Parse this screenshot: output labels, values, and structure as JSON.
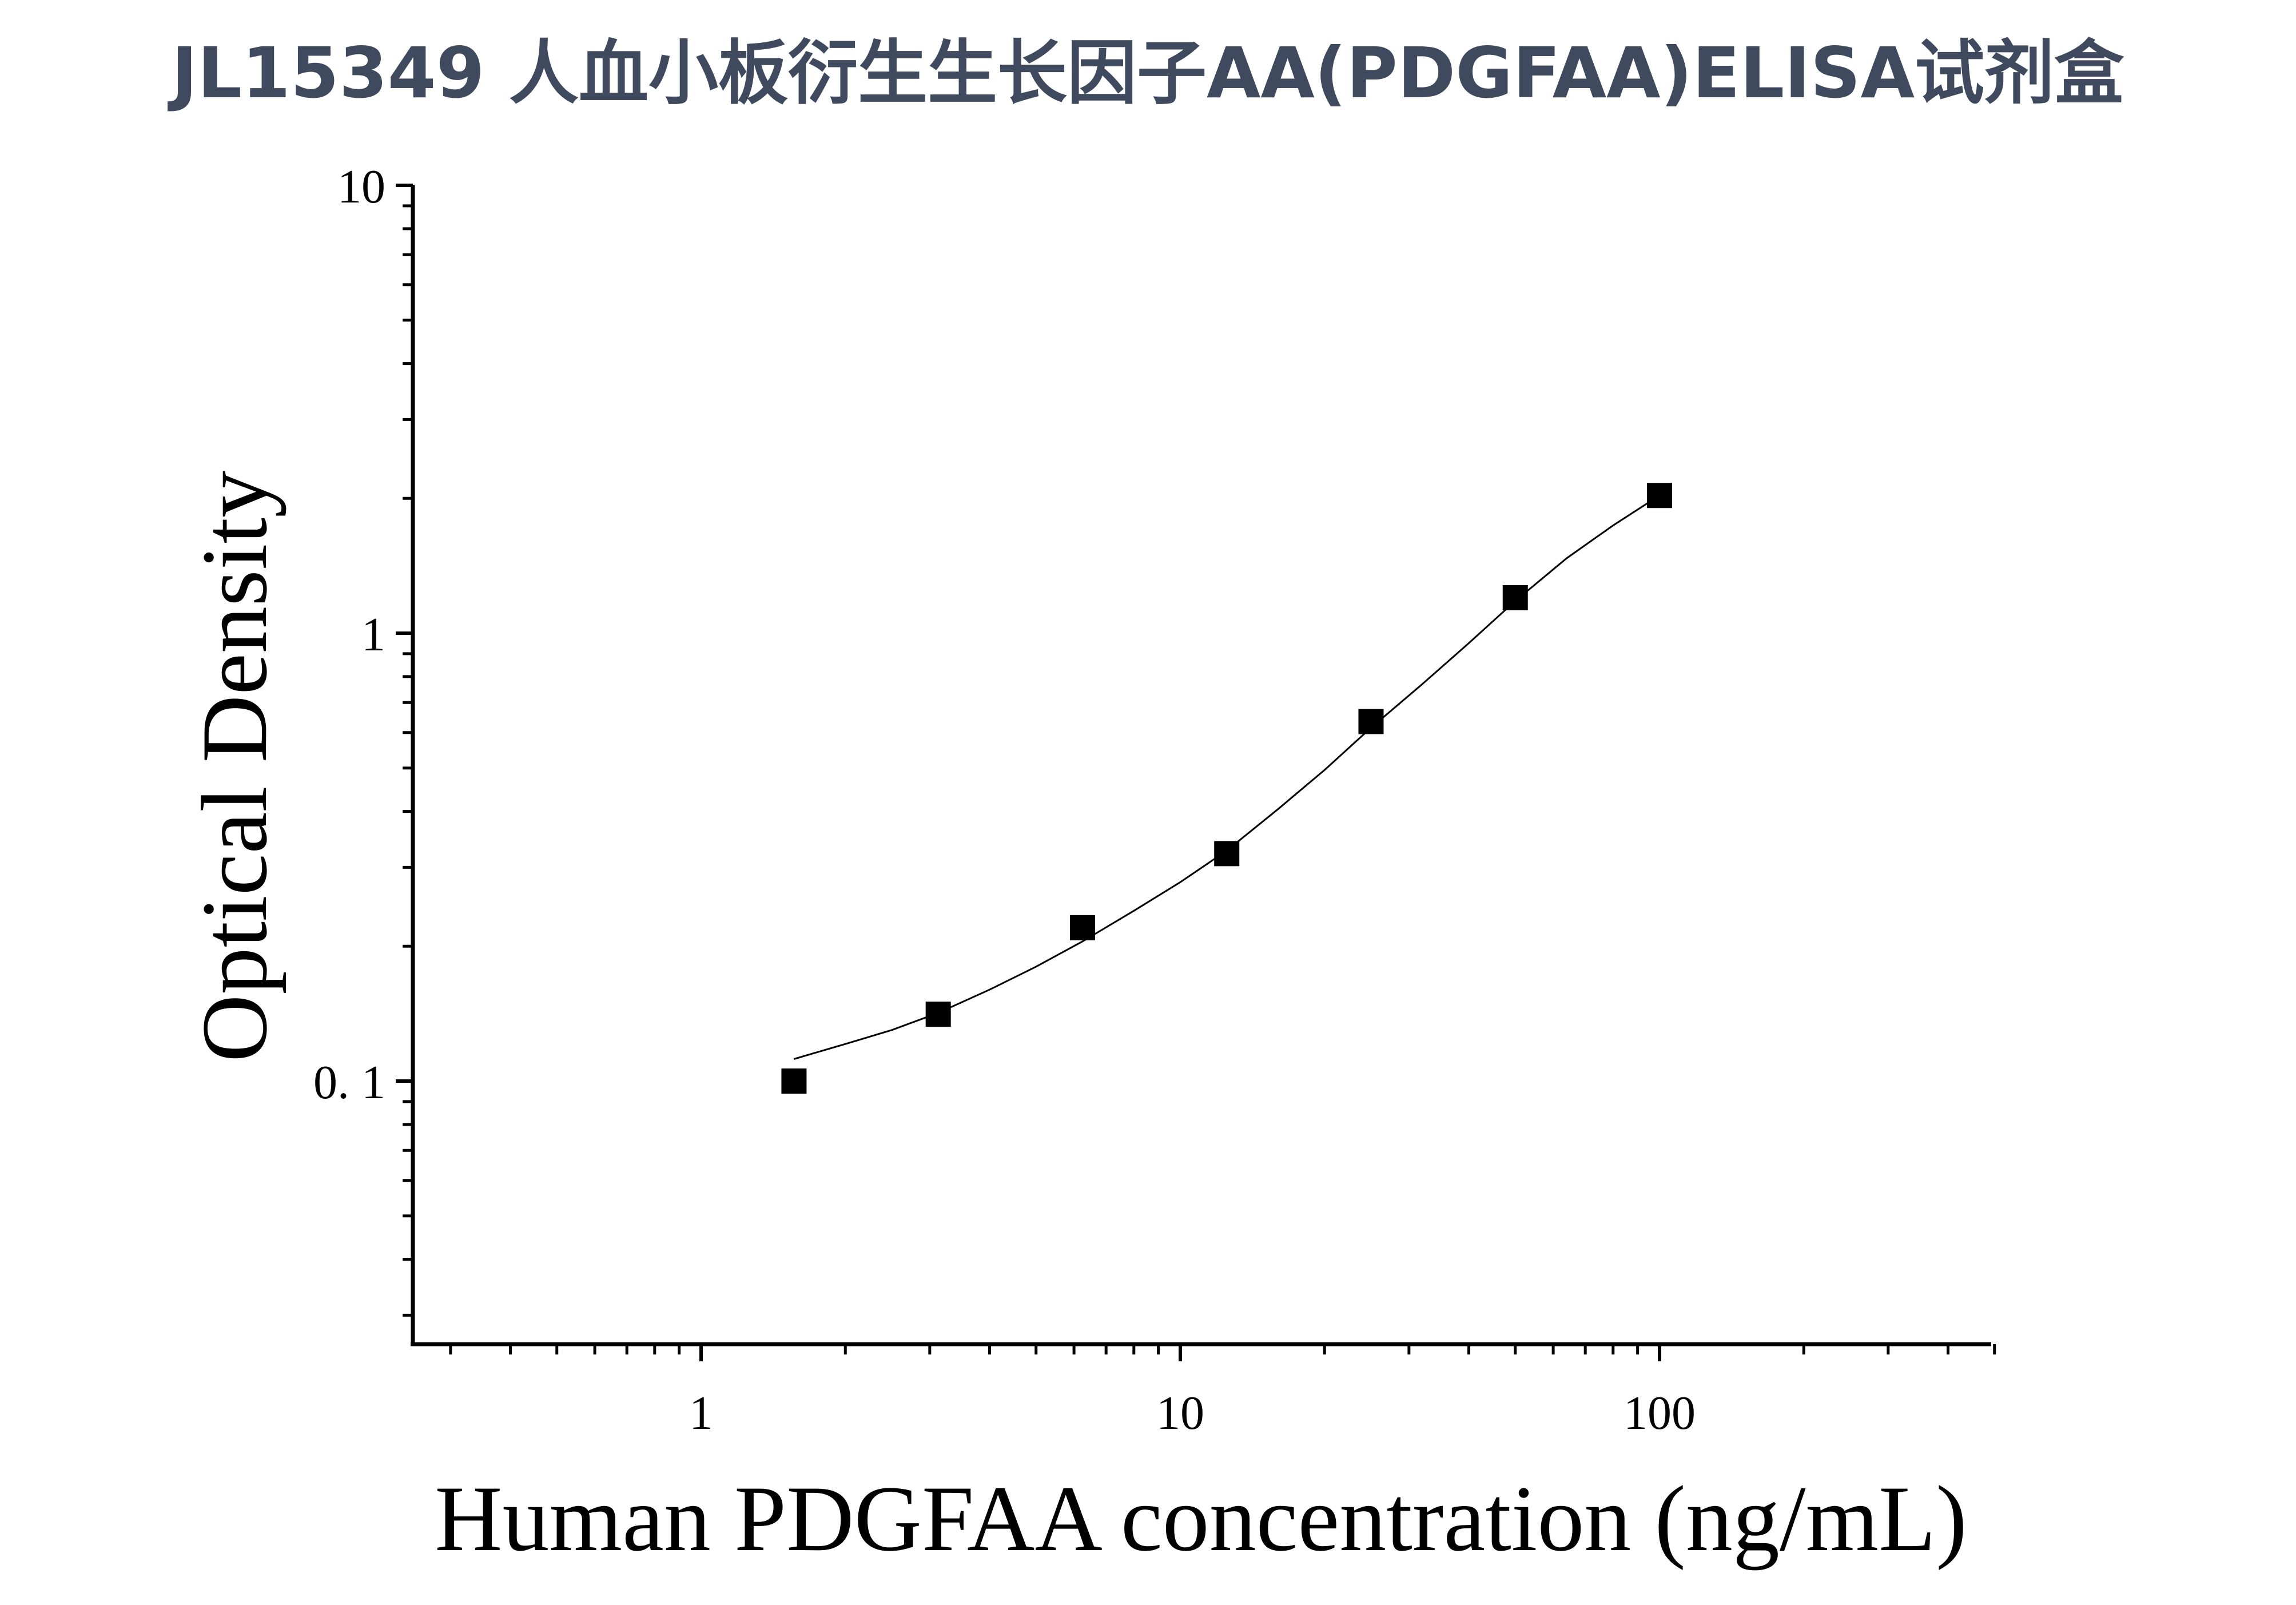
{
  "chart_data": {
    "type": "scatter",
    "title": "JL15349 人血小板衍生生长因子AA(PDGFAA)ELISA试剂盒",
    "xlabel": "Human PDGFAA concentration (ng/mL)",
    "ylabel": "Optical Density",
    "x_scale": "log",
    "y_scale": "log",
    "xlim": [
      0.3,
      500
    ],
    "ylim": [
      0.025,
      10
    ],
    "x_ticks": [
      {
        "value": 1,
        "label": "1"
      },
      {
        "value": 10,
        "label": "10"
      },
      {
        "value": 100,
        "label": "100"
      }
    ],
    "y_ticks": [
      {
        "value": 0.1,
        "label": "0. 1"
      },
      {
        "value": 1,
        "label": "1"
      },
      {
        "value": 10,
        "label": "10"
      }
    ],
    "grid": false,
    "legend": "none",
    "series": [
      {
        "marker": "square",
        "color": "#000000",
        "x": [
          1.5625,
          3.125,
          6.25,
          12.5,
          25,
          50,
          100
        ],
        "y": [
          0.1,
          0.141,
          0.22,
          0.322,
          0.635,
          1.2,
          2.03
        ]
      }
    ],
    "fit_curve": {
      "color": "#000000",
      "x": [
        1.5625,
        2.0,
        2.5,
        3.125,
        4.0,
        5.0,
        6.25,
        8.0,
        10.0,
        12.5,
        16.0,
        20.0,
        25.0,
        32.0,
        40.0,
        50.0,
        64.0,
        80.0,
        100.0
      ],
      "y": [
        0.112,
        0.121,
        0.13,
        0.142,
        0.16,
        0.18,
        0.205,
        0.24,
        0.278,
        0.327,
        0.405,
        0.495,
        0.615,
        0.77,
        0.95,
        1.18,
        1.47,
        1.74,
        2.03
      ]
    }
  }
}
